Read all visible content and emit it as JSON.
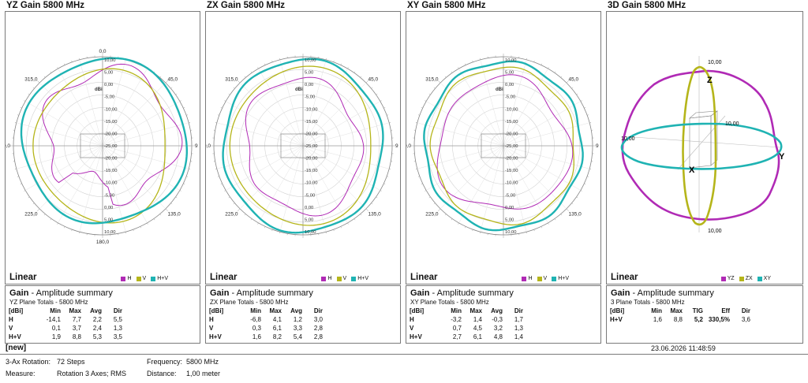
{
  "panels": [
    {
      "title": "YZ Gain 5800 MHz",
      "mode": "Linear",
      "legend": [
        {
          "label": "H",
          "color": "#b02ab5"
        },
        {
          "label": "V",
          "color": "#b5b51a"
        },
        {
          "label": "H+V",
          "color": "#1fb3b3"
        }
      ],
      "angles": {
        "top": "0,0",
        "right": "9",
        "bottom": "180,0",
        "left": "0,0",
        "tr": "45,0",
        "br": "135,0",
        "bl": "225,0",
        "tl": "315,0"
      },
      "scale_labels": [
        "10,00",
        "5,00",
        "0,00",
        "-5,00",
        "-10,00",
        "-15,00",
        "-20,00",
        "-25,00",
        "-20,00",
        "-15,00",
        "-10,00",
        "-5,00",
        "0,00",
        "5,00",
        "10,00"
      ],
      "unit": "dBi",
      "summary": {
        "title": "Gain",
        "subtitle_suffix": "- Amplitude summary",
        "scope": "YZ Plane Totals - 5800 MHz",
        "header": [
          "[dBi]",
          "Min",
          "Max",
          "Avg",
          "Dir"
        ],
        "rows": [
          [
            "H",
            "-14,1",
            "7,7",
            "2,2",
            "5,5"
          ],
          [
            "V",
            "0,1",
            "3,7",
            "2,4",
            "1,3"
          ],
          [
            "H+V",
            "1,9",
            "8,8",
            "5,3",
            "3,5"
          ]
        ]
      }
    },
    {
      "title": "ZX Gain 5800 MHz",
      "mode": "Linear",
      "legend": [
        {
          "label": "H",
          "color": "#b02ab5"
        },
        {
          "label": "V",
          "color": "#b5b51a"
        },
        {
          "label": "H+V",
          "color": "#1fb3b3"
        }
      ],
      "angles": {
        "top": "",
        "right": "9",
        "bottom": "",
        "left": "0,0",
        "tr": "45,0",
        "br": "135,0",
        "bl": "225,0",
        "tl": "315,0"
      },
      "scale_labels": [
        "10,00",
        "5,00",
        "0,00",
        "-5,00",
        "-10,00",
        "-15,00",
        "-20,00",
        "-25,00",
        "-20,00",
        "-15,00",
        "-10,00",
        "-5,00",
        "0,00",
        "5,00",
        "10,00"
      ],
      "unit": "dBi",
      "summary": {
        "title": "Gain",
        "subtitle_suffix": "- Amplitude summary",
        "scope": "ZX Plane Totals - 5800 MHz",
        "header": [
          "[dBi]",
          "Min",
          "Max",
          "Avg",
          "Dir"
        ],
        "rows": [
          [
            "H",
            "-6,8",
            "4,1",
            "1,2",
            "3,0"
          ],
          [
            "V",
            "0,3",
            "6,1",
            "3,3",
            "2,8"
          ],
          [
            "H+V",
            "1,6",
            "8,2",
            "5,4",
            "2,8"
          ]
        ]
      }
    },
    {
      "title": "XY Gain 5800 MHz",
      "mode": "Linear",
      "legend": [
        {
          "label": "H",
          "color": "#b02ab5"
        },
        {
          "label": "V",
          "color": "#b5b51a"
        },
        {
          "label": "H+V",
          "color": "#1fb3b3"
        }
      ],
      "angles": {
        "top": "",
        "right": "9",
        "bottom": "",
        "left": "0,0",
        "tr": "45,0",
        "br": "135,0",
        "bl": "225,0",
        "tl": "315,0"
      },
      "scale_labels": [
        "10,00",
        "5,00",
        "0,00",
        "-5,00",
        "-10,00",
        "-15,00",
        "-20,00",
        "-25,00",
        "-20,00",
        "-15,00",
        "-10,00",
        "-5,00",
        "0,00",
        "5,00",
        "10,00"
      ],
      "unit": "dBi",
      "summary": {
        "title": "Gain",
        "subtitle_suffix": "- Amplitude summary",
        "scope": "XY Plane Totals - 5800 MHz",
        "header": [
          "[dBi]",
          "Min",
          "Max",
          "Avg",
          "Dir"
        ],
        "rows": [
          [
            "H",
            "-3,2",
            "1,4",
            "-0,3",
            "1,7"
          ],
          [
            "V",
            "0,7",
            "4,5",
            "3,2",
            "1,3"
          ],
          [
            "H+V",
            "2,7",
            "6,1",
            "4,8",
            "1,4"
          ]
        ]
      }
    },
    {
      "title": "3D Gain 5800 MHz",
      "mode": "Linear",
      "legend": [
        {
          "label": "YZ",
          "color": "#b02ab5"
        },
        {
          "label": "ZX",
          "color": "#b5b51a"
        },
        {
          "label": "XY",
          "color": "#1fb3b3"
        }
      ],
      "axis_labels": {
        "z": "Z",
        "x": "X",
        "y": "Y",
        "top_scale": "10,00",
        "bottom_scale": "10,00",
        "right_scale": "10,00",
        "left_scale": "10,00"
      },
      "summary": {
        "title": "Gain",
        "subtitle_suffix": "- Amplitude summary",
        "scope": "3 Plane Totals - 5800 MHz",
        "header": [
          "[dBi]",
          "Min",
          "Max",
          "TIG",
          "Eff",
          "Dir"
        ],
        "rows": [
          [
            "H+V",
            "1,6",
            "8,8",
            "5,2",
            "330,5%",
            "3,6"
          ]
        ]
      }
    }
  ],
  "footer": {
    "name": "[new]",
    "date": "23.06.2026 11:48:59",
    "rotation_label": "3-Ax Rotation:",
    "rotation_value": "72 Steps",
    "measure_label": "Measure:",
    "measure_value": "Rotation 3 Axes; RMS",
    "frequency_label": "Frequency:",
    "frequency_value": "5800 MHz",
    "distance_label": "Distance:",
    "distance_value": "1,00 meter"
  }
}
